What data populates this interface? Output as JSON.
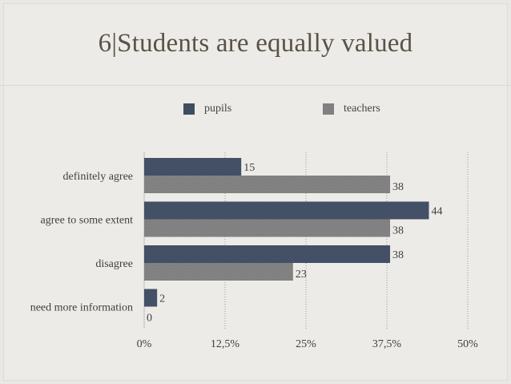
{
  "title": "6|Students are equally valued",
  "colors": {
    "pupils": "#3f4c61",
    "teachers": "#808080",
    "background": "#ecebe7"
  },
  "legend": [
    {
      "label": "pupils",
      "color": "#3f4c61"
    },
    {
      "label": "teachers",
      "color": "#808080"
    }
  ],
  "chart_data": {
    "type": "bar",
    "orientation": "horizontal",
    "categories": [
      "definitely agree",
      "agree to some extent",
      "disagree",
      "need more information"
    ],
    "series": [
      {
        "name": "pupils",
        "values": [
          15,
          44,
          38,
          2
        ]
      },
      {
        "name": "teachers",
        "values": [
          38,
          38,
          23,
          0
        ]
      }
    ],
    "xlim": [
      0,
      50
    ],
    "x_ticks": [
      0,
      12.5,
      25,
      37.5,
      50
    ],
    "x_tick_labels": [
      "0%",
      "12,5%",
      "25%",
      "37,5%",
      "50%"
    ],
    "grid": "vertical dotted",
    "legend_position": "top"
  }
}
